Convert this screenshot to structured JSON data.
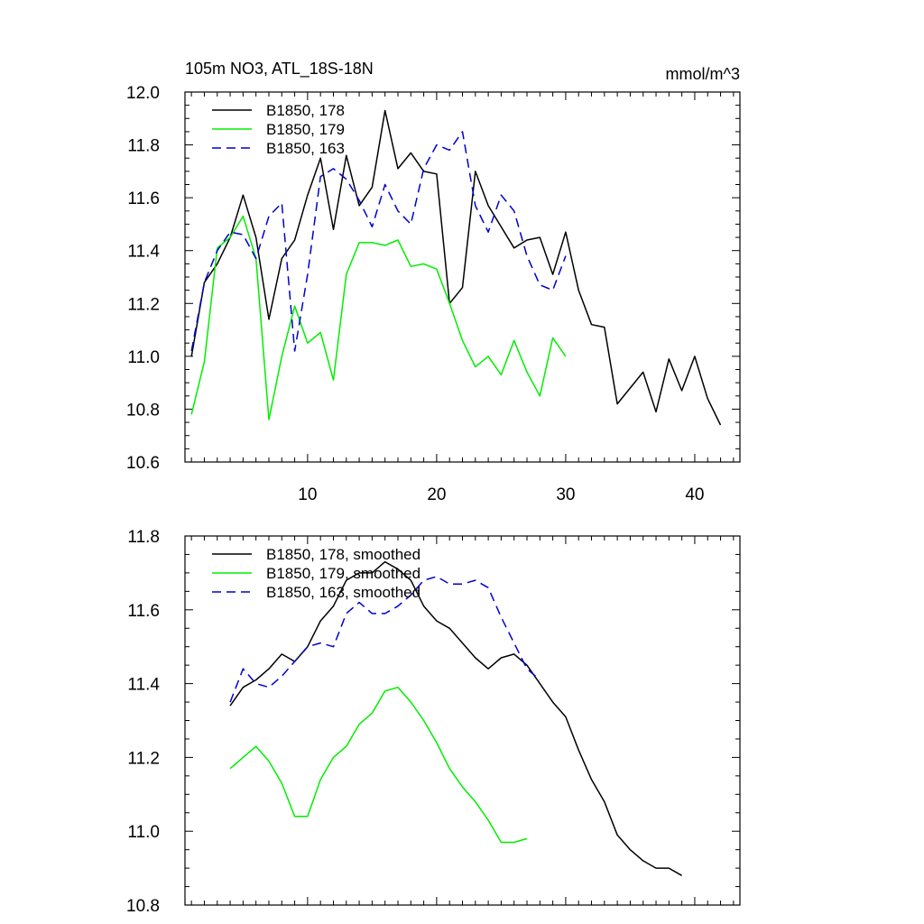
{
  "title_left": "105m NO3, ATL_18S-18N",
  "title_right": "mmol/m^3",
  "colors": {
    "s178": "#000000",
    "s179": "#00ee00",
    "s163": "#0000cc"
  },
  "chart_data": [
    {
      "type": "line",
      "title": "105m NO3, ATL_18S-18N",
      "units": "mmol/m^3",
      "xlim": [
        0.5,
        43.5
      ],
      "ylim": [
        10.6,
        12.0
      ],
      "xticks": [
        10,
        20,
        30,
        40
      ],
      "xtick_labels": [
        "10",
        "20",
        "30",
        "40"
      ],
      "yticks": [
        10.6,
        10.8,
        11.0,
        11.2,
        11.4,
        11.6,
        11.8,
        12.0
      ],
      "ytick_labels": [
        "10.6",
        "10.8",
        "11.0",
        "11.2",
        "11.4",
        "11.6",
        "11.8",
        "12.0"
      ],
      "legend_position": "top-left",
      "series": [
        {
          "name": "B1850, 178",
          "color": "#000000",
          "dash": false,
          "x_start": 1,
          "values": [
            11.0,
            11.28,
            11.35,
            11.45,
            11.61,
            11.45,
            11.14,
            11.37,
            11.44,
            11.61,
            11.75,
            11.48,
            11.76,
            11.57,
            11.64,
            11.93,
            11.71,
            11.77,
            11.7,
            11.69,
            11.2,
            11.26,
            11.7,
            11.57,
            11.49,
            11.41,
            11.44,
            11.45,
            11.31,
            11.47,
            11.25,
            11.12,
            11.11,
            10.82,
            10.88,
            10.94,
            10.79,
            10.99,
            10.87,
            11.0,
            10.84,
            10.74
          ]
        },
        {
          "name": "B1850, 179",
          "color": "#00ee00",
          "dash": false,
          "x_start": 1,
          "values": [
            10.78,
            10.98,
            11.41,
            11.45,
            11.53,
            11.37,
            10.76,
            11.0,
            11.19,
            11.05,
            11.09,
            10.91,
            11.31,
            11.43,
            11.43,
            11.42,
            11.44,
            11.34,
            11.35,
            11.33,
            11.2,
            11.06,
            10.96,
            11.0,
            10.93,
            11.06,
            10.94,
            10.85,
            11.07,
            11.0
          ]
        },
        {
          "name": "B1850, 163",
          "color": "#0000cc",
          "dash": true,
          "x_start": 1,
          "values": [
            11.02,
            11.28,
            11.4,
            11.47,
            11.46,
            11.37,
            11.53,
            11.58,
            11.02,
            11.31,
            11.68,
            11.71,
            11.67,
            11.59,
            11.49,
            11.65,
            11.55,
            11.5,
            11.71,
            11.8,
            11.78,
            11.85,
            11.57,
            11.47,
            11.61,
            11.55,
            11.38,
            11.27,
            11.25,
            11.38
          ]
        }
      ]
    },
    {
      "type": "line",
      "title": "",
      "xlim": [
        0.5,
        43.5
      ],
      "ylim": [
        10.8,
        11.8
      ],
      "xticks": [
        10,
        20,
        30,
        40
      ],
      "xtick_labels": [],
      "yticks": [
        10.8,
        11.0,
        11.2,
        11.4,
        11.6,
        11.8
      ],
      "ytick_labels": [
        "10.8",
        "11.0",
        "11.2",
        "11.4",
        "11.6",
        "11.8"
      ],
      "legend_position": "top-left",
      "series": [
        {
          "name": "B1850, 178, smoothed",
          "color": "#000000",
          "dash": false,
          "x_start": 4,
          "values": [
            11.34,
            11.39,
            11.41,
            11.44,
            11.48,
            11.46,
            11.5,
            11.57,
            11.61,
            11.68,
            11.7,
            11.7,
            11.73,
            11.71,
            11.68,
            11.61,
            11.57,
            11.55,
            11.51,
            11.47,
            11.44,
            11.47,
            11.48,
            11.45,
            11.4,
            11.35,
            11.31,
            11.22,
            11.14,
            11.08,
            10.99,
            10.95,
            10.92,
            10.9,
            10.9,
            10.88
          ]
        },
        {
          "name": "B1850, 179, smoothed",
          "color": "#00ee00",
          "dash": false,
          "x_start": 4,
          "values": [
            11.17,
            11.2,
            11.23,
            11.19,
            11.13,
            11.04,
            11.04,
            11.14,
            11.2,
            11.23,
            11.29,
            11.32,
            11.38,
            11.39,
            11.35,
            11.3,
            11.24,
            11.17,
            11.12,
            11.08,
            11.03,
            10.97,
            10.97,
            10.98
          ]
        },
        {
          "name": "B1850, 163, smoothed",
          "color": "#0000cc",
          "dash": true,
          "x_start": 4,
          "values": [
            11.35,
            11.44,
            11.4,
            11.39,
            11.42,
            11.46,
            11.5,
            11.51,
            11.5,
            11.59,
            11.62,
            11.59,
            11.59,
            11.61,
            11.64,
            11.68,
            11.69,
            11.67,
            11.67,
            11.68,
            11.66,
            11.58,
            11.51,
            11.44,
            11.41
          ]
        }
      ]
    }
  ]
}
